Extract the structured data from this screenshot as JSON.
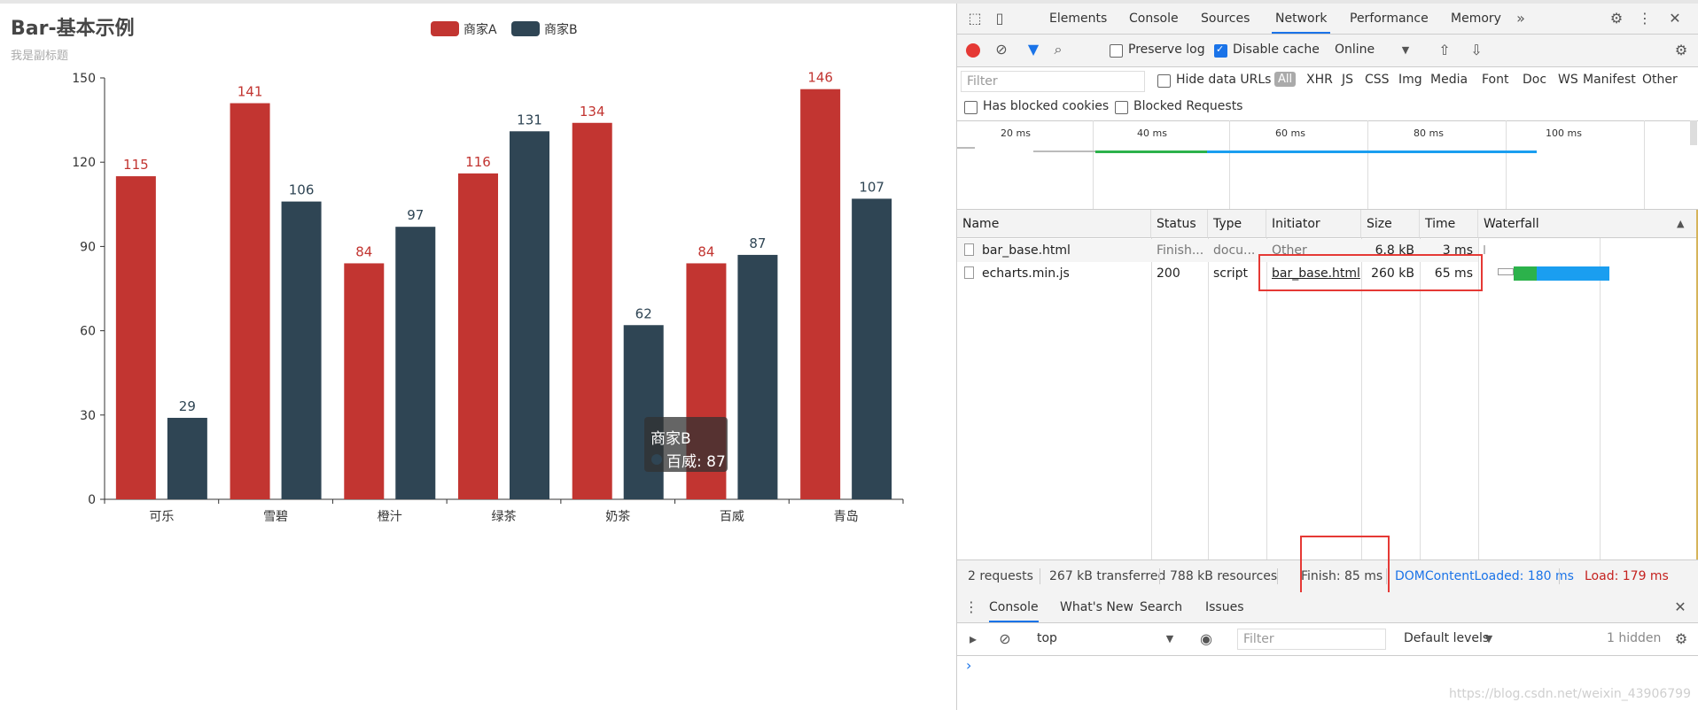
{
  "chart_data": {
    "type": "bar",
    "title": "Bar-基本示例",
    "subtitle": "我是副标题",
    "categories": [
      "可乐",
      "雪碧",
      "橙汁",
      "绿茶",
      "奶茶",
      "百威",
      "青岛"
    ],
    "series": [
      {
        "name": "商家A",
        "color": "#c23531",
        "values": [
          115,
          141,
          84,
          116,
          134,
          84,
          146
        ]
      },
      {
        "name": "商家B",
        "color": "#2f4554",
        "values": [
          29,
          106,
          97,
          131,
          62,
          87,
          107
        ]
      }
    ],
    "ylim": [
      0,
      150
    ],
    "yticks": [
      0,
      30,
      60,
      90,
      120,
      150
    ],
    "legend": "top",
    "tooltip": {
      "series": "商家B",
      "label": "百威: 87"
    }
  },
  "devtools": {
    "tabs": [
      "Elements",
      "Console",
      "Sources",
      "Network",
      "Performance",
      "Memory"
    ],
    "active_tab": "Network",
    "more_tabs": "»",
    "toolbar": {
      "preserve_log": "Preserve log",
      "disable_cache": "Disable cache",
      "throttle": "Online"
    },
    "filter": {
      "placeholder": "Filter",
      "hide_data_urls": "Hide data URLs",
      "types": [
        "All",
        "XHR",
        "JS",
        "CSS",
        "Img",
        "Media",
        "Font",
        "Doc",
        "WS",
        "Manifest",
        "Other"
      ]
    },
    "filter2": {
      "blocked_cookies": "Has blocked cookies",
      "blocked_requests": "Blocked Requests"
    },
    "overview_ticks": [
      "20 ms",
      "40 ms",
      "60 ms",
      "80 ms",
      "100 ms"
    ],
    "columns": [
      "Name",
      "Status",
      "Type",
      "Initiator",
      "Size",
      "Time",
      "Waterfall"
    ],
    "rows": [
      {
        "name": "bar_base.html",
        "status": "Finish...",
        "type": "docu...",
        "initiator": "Other",
        "size": "6.8 kB",
        "time": "3 ms"
      },
      {
        "name": "echarts.min.js",
        "status": "200",
        "type": "script",
        "initiator": "bar_base.html",
        "size": "260 kB",
        "time": "65 ms"
      }
    ],
    "status": {
      "requests": "2 requests",
      "transferred": "267 kB transferred",
      "resources": "788 kB resources",
      "finish": "Finish: 85 ms",
      "dcl": "DOMContentLoaded: 180 ms",
      "load": "Load: 179 ms"
    },
    "drawer_tabs": [
      "Console",
      "What's New",
      "Search",
      "Issues"
    ],
    "drawer_tools": {
      "context": "top",
      "filter_placeholder": "Filter",
      "levels": "Default levels",
      "hidden": "1 hidden"
    },
    "prompt": "›"
  },
  "watermark": "https://blog.csdn.net/weixin_43906799"
}
